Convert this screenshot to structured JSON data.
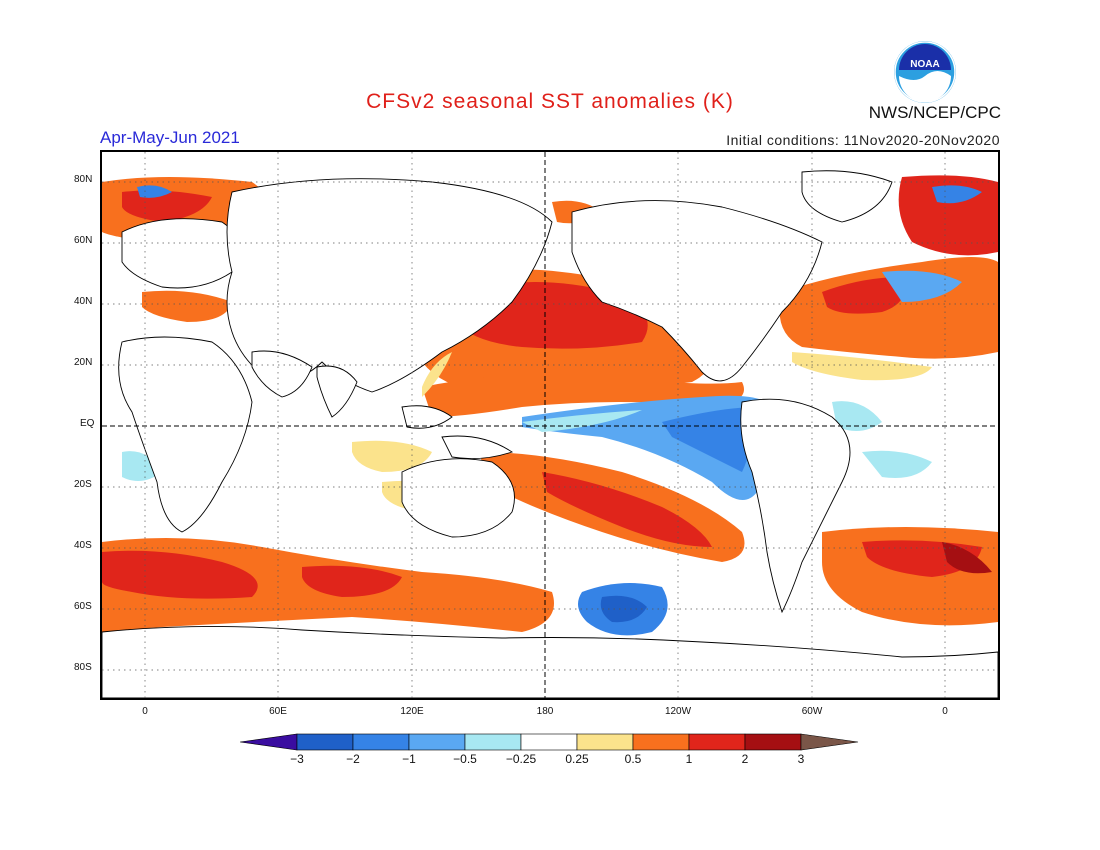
{
  "header": {
    "title": "CFSv2 seasonal SST anomalies (K)",
    "season": "Apr-May-Jun 2021",
    "initial_conditions": "Initial conditions: 11Nov2020-20Nov2020",
    "org": "NWS/NCEP/CPC",
    "logo_text": "NOAA"
  },
  "axes": {
    "lat_labels": [
      "80N",
      "60N",
      "40N",
      "20N",
      "EQ",
      "20S",
      "40S",
      "60S",
      "80S"
    ],
    "lon_labels": [
      "0",
      "60E",
      "120E",
      "180",
      "120W",
      "60W",
      "0"
    ]
  },
  "colorbar": {
    "levels": [
      "-3",
      "-2",
      "-1",
      "-0.5",
      "-0.25",
      "0.25",
      "0.5",
      "1",
      "2",
      "3"
    ],
    "colors": [
      "#3a0da0",
      "#1f60c8",
      "#3583e6",
      "#5aa8f2",
      "#a8e8f2",
      "#ffffff",
      "#fbe38c",
      "#f8701e",
      "#e0251b",
      "#a50f12",
      "#7a5648"
    ]
  }
}
